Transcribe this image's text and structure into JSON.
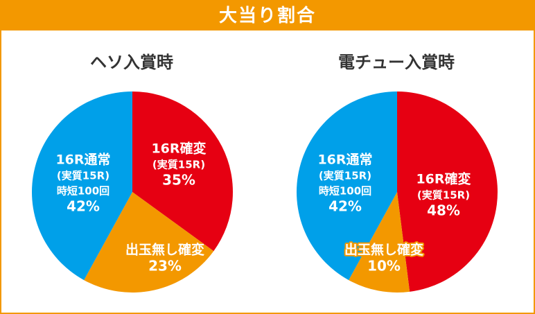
{
  "header": {
    "title": "大当り割合"
  },
  "colors": {
    "accent": "#f39800",
    "red": "#e60012",
    "blue": "#00a0e9",
    "orange": "#f39800"
  },
  "chart_data": [
    {
      "type": "pie",
      "title": "ヘソ入賞時",
      "slices": [
        {
          "lines": [
            "16R確変",
            "(実質15R)"
          ],
          "value": 35,
          "display": "35%",
          "color": "#e60012"
        },
        {
          "lines": [
            "出玉無し確変"
          ],
          "value": 23,
          "display": "23%",
          "color": "#f39800"
        },
        {
          "lines": [
            "16R通常",
            "(実質15R)",
            "時短100回"
          ],
          "value": 42,
          "display": "42%",
          "color": "#00a0e9"
        }
      ]
    },
    {
      "type": "pie",
      "title": "電チュー入賞時",
      "slices": [
        {
          "lines": [
            "16R確変",
            "(実質15R)"
          ],
          "value": 48,
          "display": "48%",
          "color": "#e60012"
        },
        {
          "lines": [
            "出玉無し確変"
          ],
          "value": 10,
          "display": "10%",
          "color": "#f39800"
        },
        {
          "lines": [
            "16R通常",
            "(実質15R)",
            "時短100回"
          ],
          "value": 42,
          "display": "42%",
          "color": "#00a0e9"
        }
      ]
    }
  ]
}
